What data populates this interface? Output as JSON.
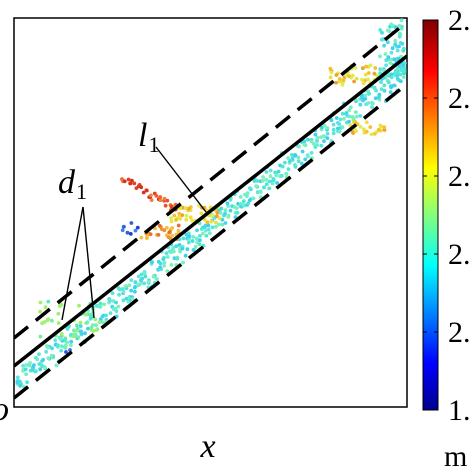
{
  "labels": {
    "l1_main": "l",
    "l1_sub": "1",
    "d1_main": "d",
    "d1_sub": "1",
    "x_axis": "x",
    "origin_partial": "o",
    "colorbar_unit_partial": "m"
  },
  "colorbar": {
    "tick_labels": [
      "2.",
      "2.",
      "2.",
      "2.",
      "2.",
      "1."
    ],
    "colormap": "jet"
  },
  "colors": {
    "center_line": "#000000",
    "boundary_lines": "#000000",
    "frame": "#000000",
    "points_dominant": "#4fe8d6"
  }
}
